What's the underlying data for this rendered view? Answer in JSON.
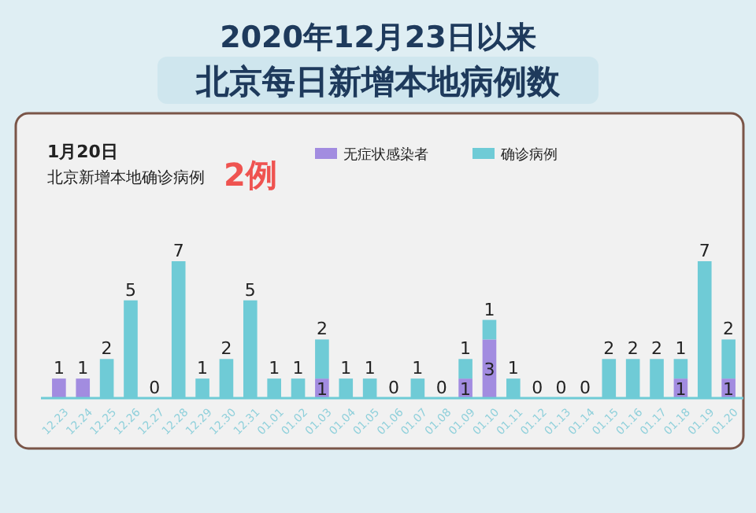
{
  "chart_data": {
    "type": "bar",
    "stacked": true,
    "title": "2020年12月23日以来",
    "subtitle": "北京每日新增本地病例数",
    "annotations": [
      "1月20日",
      "北京新增本地确诊病例",
      "2例"
    ],
    "legend": "top",
    "categories": [
      "12.23",
      "12.24",
      "12.25",
      "12.26",
      "12.27",
      "12.28",
      "12.29",
      "12.30",
      "12.31",
      "01.01",
      "01.02",
      "01.03",
      "01.04",
      "01.05",
      "01.06",
      "01.07",
      "01.08",
      "01.09",
      "01.10",
      "01.11",
      "01.12",
      "01.13",
      "01.14",
      "01.15",
      "01.16",
      "01.17",
      "01.18",
      "01.19",
      "01.20"
    ],
    "series": [
      {
        "name": "无症状感染者",
        "color": "#a28ce0",
        "values": [
          1,
          1,
          0,
          0,
          0,
          0,
          0,
          0,
          0,
          0,
          0,
          1,
          0,
          0,
          0,
          0,
          0,
          1,
          3,
          0,
          0,
          0,
          0,
          0,
          0,
          0,
          1,
          0,
          1
        ],
        "value_labels": [
          "1",
          "1",
          null,
          null,
          null,
          null,
          null,
          null,
          null,
          null,
          null,
          "1",
          null,
          null,
          null,
          null,
          null,
          "1",
          "3",
          null,
          null,
          null,
          null,
          null,
          null,
          null,
          "1",
          null,
          "1"
        ]
      },
      {
        "name": "确诊病例",
        "color": "#6fcbd6",
        "values": [
          0,
          0,
          2,
          5,
          0,
          7,
          1,
          2,
          5,
          1,
          1,
          2,
          1,
          1,
          0,
          1,
          0,
          1,
          1,
          1,
          0,
          0,
          0,
          2,
          2,
          2,
          1,
          7,
          2
        ],
        "value_labels": [
          null,
          null,
          "2",
          "5",
          "0",
          "7",
          "1",
          "2",
          "5",
          "1",
          "1",
          "2",
          "1",
          "1",
          "0",
          "1",
          "0",
          "1",
          "1",
          "1",
          "0",
          "0",
          "0",
          "2",
          "2",
          "2",
          "1",
          "7",
          "2"
        ]
      }
    ]
  }
}
